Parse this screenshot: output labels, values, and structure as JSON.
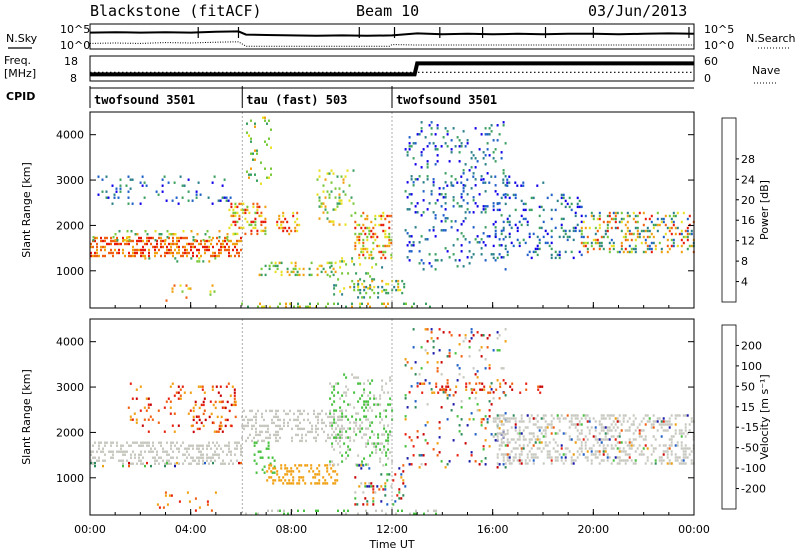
{
  "header": {
    "station": "Blackstone (fitACF)",
    "beam": "Beam 10",
    "date": "03/Jun/2013"
  },
  "chart_data": [
    {
      "type": "line",
      "panel": "noise",
      "left_label": "N.Sky",
      "right_label": "N.Search",
      "left_ticks": [
        "10^5",
        "10^0"
      ],
      "right_ticks": [
        "10^5",
        "10^0"
      ],
      "series": [
        {
          "role": "sky",
          "style": "solid",
          "x": [
            0,
            1,
            2,
            3,
            4,
            5,
            5.9,
            6.2,
            7,
            8,
            9,
            10,
            11,
            12,
            13,
            14,
            15,
            16,
            17,
            18,
            19,
            20,
            21,
            22,
            23,
            24
          ],
          "y": [
            3.6,
            3.7,
            3.6,
            3.7,
            3.6,
            3.8,
            3.9,
            3.1,
            3.0,
            2.9,
            2.8,
            2.9,
            2.8,
            2.9,
            3.4,
            3.2,
            3.3,
            3.2,
            3.3,
            3.2,
            3.3,
            3.3,
            3.2,
            3.3,
            3.4,
            3.3
          ]
        },
        {
          "role": "search",
          "style": "dotted",
          "x": [
            0,
            1,
            2,
            3,
            4,
            5,
            5.9,
            6.2,
            11.9,
            12,
            13,
            14,
            16,
            18,
            20,
            22,
            24
          ],
          "y": [
            0.9,
            1.0,
            0.9,
            1.1,
            1.0,
            1.2,
            1.3,
            0.2,
            0.2,
            0.6,
            0.5,
            0.5,
            0.5,
            0.5,
            0.5,
            0.5,
            0.5
          ]
        }
      ],
      "spikes_x": [
        4.3,
        5.9,
        10.7,
        12.1,
        13.9,
        15.6,
        18.1,
        20.0,
        23.8
      ]
    },
    {
      "type": "line",
      "panel": "frequency",
      "left_label": "Freq.",
      "left_unit": "[MHz]",
      "right_label": "Nave",
      "left_ticks": [
        8,
        18
      ],
      "right_ticks": [
        0,
        60
      ],
      "series": [
        {
          "role": "freq",
          "style": "solid",
          "x": [
            0,
            12.9,
            13.0,
            24
          ],
          "y": [
            10.3,
            10.3,
            15.8,
            15.8
          ]
        },
        {
          "role": "nave",
          "style": "dotted",
          "x": [
            0,
            12,
            12.2,
            24
          ],
          "y": [
            20,
            20,
            20,
            20
          ]
        }
      ]
    },
    {
      "type": "table",
      "panel": "cpid",
      "label": "CPID",
      "segments": [
        {
          "start": 0,
          "end": 6.05,
          "name": "twofsound 3501"
        },
        {
          "start": 6.05,
          "end": 12.0,
          "name": "tau (fast) 503"
        },
        {
          "start": 12.0,
          "end": 24,
          "name": "twofsound 3501"
        }
      ]
    },
    {
      "type": "heatmap",
      "panel": "power",
      "ylabel": "Slant Range [km]",
      "xlim": [
        0,
        24
      ],
      "ylim": [
        180,
        4500
      ],
      "yticks": [
        1000,
        2000,
        3000,
        4000
      ],
      "colorbar": {
        "label": "Power [dB]",
        "ticks": [
          4,
          8,
          12,
          16,
          20,
          24,
          28
        ],
        "colors": [
          "#1000e8",
          "#1e5fc8",
          "#2a7f8a",
          "#3aa060",
          "#78c83c",
          "#e8e020",
          "#f0a010",
          "#f06010",
          "#e81a0a"
        ]
      },
      "regions": [
        {
          "t0": 0.0,
          "t1": 6.0,
          "r0": 1300,
          "r1": 1750,
          "d": 0.95,
          "c": [
            6,
            8
          ]
        },
        {
          "t0": 0.1,
          "t1": 6.0,
          "r0": 1700,
          "r1": 1900,
          "d": 0.35,
          "c": [
            3,
            6
          ]
        },
        {
          "t0": 0.3,
          "t1": 5.6,
          "r0": 2500,
          "r1": 3100,
          "d": 0.22,
          "c": [
            0,
            3
          ]
        },
        {
          "t0": 2.0,
          "t1": 5.6,
          "r0": 1200,
          "r1": 1300,
          "d": 0.3,
          "c": [
            3,
            6
          ]
        },
        {
          "t0": 3.0,
          "t1": 5.0,
          "r0": 350,
          "r1": 700,
          "d": 0.25,
          "c": [
            4,
            7
          ]
        },
        {
          "t0": 5.5,
          "t1": 7.0,
          "r0": 1800,
          "r1": 2500,
          "d": 0.7,
          "c": [
            4,
            8
          ]
        },
        {
          "t0": 6.2,
          "t1": 7.2,
          "r0": 2800,
          "r1": 4400,
          "d": 0.25,
          "c": [
            3,
            6
          ]
        },
        {
          "t0": 7.4,
          "t1": 8.3,
          "r0": 1800,
          "r1": 2300,
          "d": 0.7,
          "c": [
            5,
            8
          ]
        },
        {
          "t0": 6.7,
          "t1": 9.8,
          "r0": 880,
          "r1": 1200,
          "d": 0.6,
          "c": [
            3,
            6
          ]
        },
        {
          "t0": 9.0,
          "t1": 10.5,
          "r0": 2000,
          "r1": 3300,
          "d": 0.3,
          "c": [
            3,
            6
          ]
        },
        {
          "t0": 10.5,
          "t1": 12.0,
          "r0": 1300,
          "r1": 2300,
          "d": 0.7,
          "c": [
            4,
            8
          ]
        },
        {
          "t0": 9.5,
          "t1": 11.6,
          "r0": 400,
          "r1": 1300,
          "d": 0.25,
          "c": [
            2,
            5
          ]
        },
        {
          "t0": 10.3,
          "t1": 12.5,
          "r0": 500,
          "r1": 800,
          "d": 0.5,
          "c": [
            2,
            6
          ]
        },
        {
          "t0": 6.0,
          "t1": 13.5,
          "r0": 180,
          "r1": 300,
          "d": 0.55,
          "c": [
            3,
            6
          ]
        },
        {
          "t0": 12.5,
          "t1": 16.5,
          "r0": 1000,
          "r1": 4300,
          "d": 0.25,
          "c": [
            0,
            3
          ]
        },
        {
          "t0": 16.0,
          "t1": 19.5,
          "r0": 1300,
          "r1": 2700,
          "d": 0.3,
          "c": [
            0,
            3
          ]
        },
        {
          "t0": 19.5,
          "t1": 24.0,
          "r0": 1400,
          "r1": 2300,
          "d": 0.6,
          "c": [
            1,
            8
          ]
        },
        {
          "t0": 14.0,
          "t1": 18.0,
          "r0": 2900,
          "r1": 3100,
          "d": 0.3,
          "c": [
            0,
            2
          ]
        }
      ]
    },
    {
      "type": "heatmap",
      "panel": "velocity",
      "ylabel": "Slant Range [km]",
      "xlabel": "Time UT",
      "xlim": [
        0,
        24
      ],
      "ylim": [
        180,
        4500
      ],
      "yticks": [
        1000,
        2000,
        3000,
        4000
      ],
      "xticks": [
        "00:00",
        "04:00",
        "08:00",
        "12:00",
        "16:00",
        "20:00",
        "00:00"
      ],
      "colorbar": {
        "label": "Velocity [m s⁻¹]",
        "ticks": [
          200,
          100,
          50,
          15,
          -15,
          -50,
          -100,
          -200
        ],
        "colors": [
          "#1a1aa8",
          "#1e5fc8",
          "#2e8a5a",
          "#48c040",
          "#c8c8c0",
          "#f0a010",
          "#f06010",
          "#e82010",
          "#c80000"
        ]
      },
      "regions": [
        {
          "t0": 0.0,
          "t1": 6.0,
          "r0": 1300,
          "r1": 1800,
          "d": 0.8,
          "c": [
            4,
            4
          ]
        },
        {
          "t0": 0.0,
          "t1": 6.0,
          "r0": 1250,
          "r1": 1350,
          "d": 0.3,
          "c": [
            0,
            8
          ]
        },
        {
          "t0": 1.5,
          "t1": 5.8,
          "r0": 2000,
          "r1": 3100,
          "d": 0.2,
          "c": [
            5,
            8
          ]
        },
        {
          "t0": 4.0,
          "t1": 5.8,
          "r0": 2000,
          "r1": 2700,
          "d": 0.35,
          "c": [
            5,
            8
          ]
        },
        {
          "t0": 2.5,
          "t1": 5.0,
          "r0": 300,
          "r1": 700,
          "d": 0.2,
          "c": [
            5,
            7
          ]
        },
        {
          "t0": 6.0,
          "t1": 10.0,
          "r0": 1800,
          "r1": 2500,
          "d": 0.7,
          "c": [
            4,
            4
          ]
        },
        {
          "t0": 6.5,
          "t1": 7.3,
          "r0": 1100,
          "r1": 1800,
          "d": 0.4,
          "c": [
            3,
            3
          ]
        },
        {
          "t0": 7.0,
          "t1": 9.8,
          "r0": 880,
          "r1": 1300,
          "d": 0.75,
          "c": [
            5,
            5
          ]
        },
        {
          "t0": 9.5,
          "t1": 12.0,
          "r0": 1300,
          "r1": 3300,
          "d": 0.45,
          "c": [
            3,
            4
          ]
        },
        {
          "t0": 10.5,
          "t1": 12.5,
          "r0": 400,
          "r1": 1300,
          "d": 0.35,
          "c": [
            0,
            8
          ]
        },
        {
          "t0": 6.0,
          "t1": 14.0,
          "r0": 180,
          "r1": 300,
          "d": 0.35,
          "c": [
            3,
            4
          ]
        },
        {
          "t0": 12.5,
          "t1": 16.5,
          "r0": 1200,
          "r1": 4300,
          "d": 0.2,
          "c": [
            0,
            8
          ]
        },
        {
          "t0": 13.0,
          "t1": 18.0,
          "r0": 2900,
          "r1": 3100,
          "d": 0.35,
          "c": [
            5,
            8
          ]
        },
        {
          "t0": 16.0,
          "t1": 24.0,
          "r0": 1300,
          "r1": 2400,
          "d": 0.6,
          "c": [
            4,
            4
          ]
        },
        {
          "t0": 16.0,
          "t1": 24.0,
          "r0": 1300,
          "r1": 2400,
          "d": 0.15,
          "c": [
            0,
            8
          ]
        }
      ]
    }
  ]
}
